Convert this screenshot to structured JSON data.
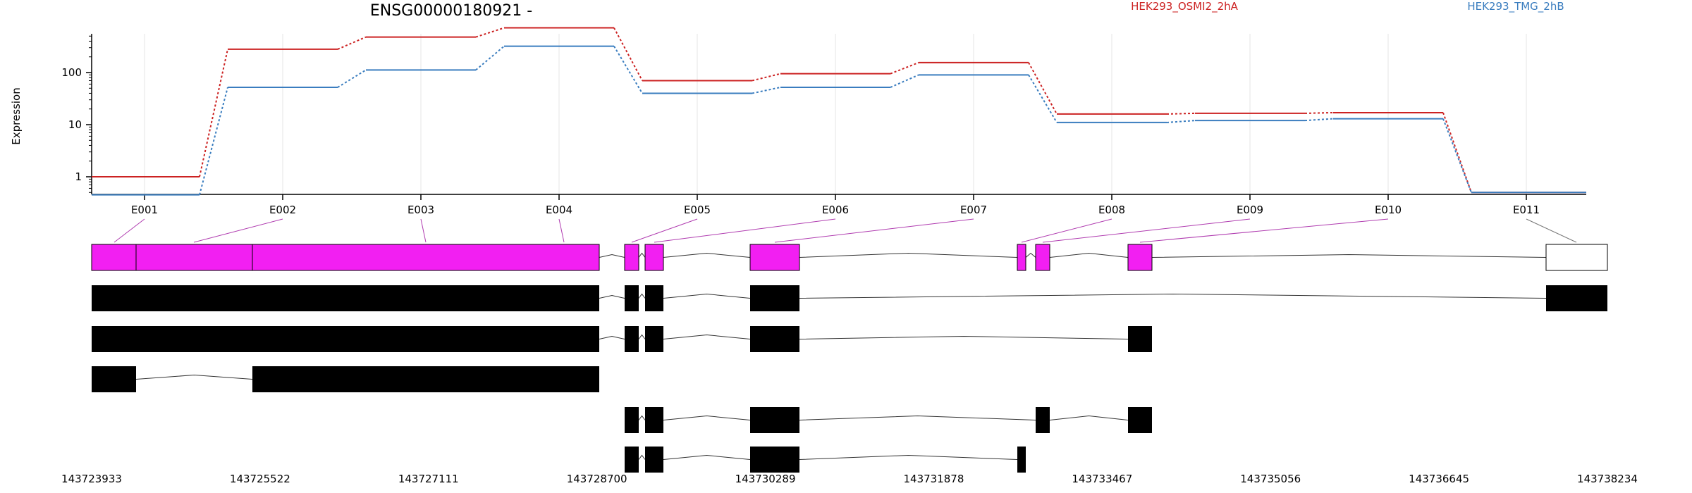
{
  "chart_data": {
    "type": "line",
    "title": "ENSG00000180921 -",
    "ylabel": "Expression",
    "y_scale": "log",
    "y_ticks": [
      1,
      10,
      100
    ],
    "grid": "vertical",
    "legend_position": "top-right",
    "categories": [
      "E001",
      "E002",
      "E003",
      "E004",
      "E005",
      "E006",
      "E007",
      "E008",
      "E009",
      "E010",
      "E011"
    ],
    "series": [
      {
        "name": "HEK293_OSMI2_2hA",
        "color": "#cc2222",
        "values": [
          1.0,
          280,
          480,
          720,
          70,
          95,
          155,
          16,
          16.5,
          17,
          0.5
        ]
      },
      {
        "name": "HEK293_TMG_2hB",
        "color": "#3a7dbf",
        "values": [
          0.45,
          52,
          112,
          320,
          40,
          52,
          90,
          11,
          12,
          13,
          0.5
        ]
      }
    ],
    "exon_fill_colors": {
      "significant": "#f21ff2",
      "other": "#ffffff"
    },
    "exons_significant": [
      true,
      true,
      true,
      true,
      true,
      true,
      true,
      true,
      true,
      true,
      false
    ],
    "genomic_ticks": [
      "143723933",
      "143725522",
      "143727111",
      "143728700",
      "143730289",
      "143731878",
      "143733467",
      "143735056",
      "143736645",
      "143738234"
    ]
  }
}
